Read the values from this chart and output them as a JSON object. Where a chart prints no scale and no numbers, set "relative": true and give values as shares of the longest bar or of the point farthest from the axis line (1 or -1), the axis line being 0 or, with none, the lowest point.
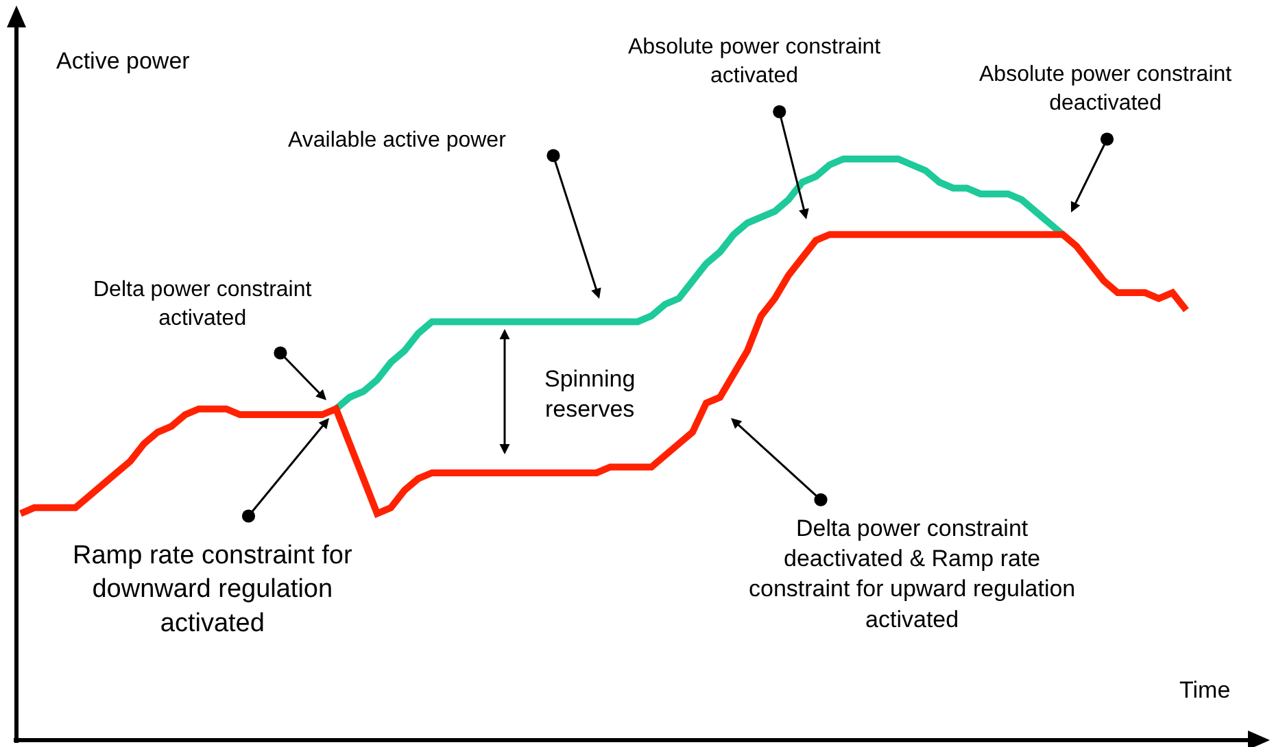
{
  "chart_data": {
    "type": "line",
    "relative": true,
    "xlabel": "Time",
    "ylabel": "Active power",
    "marker": "none",
    "line_style": "solid",
    "categories": [
      null,
      null,
      null,
      null,
      null,
      null,
      null,
      null,
      null,
      null,
      null,
      null,
      null,
      null,
      null,
      null,
      null,
      null,
      null,
      null,
      null,
      null,
      null,
      null,
      null,
      null,
      null,
      null,
      null,
      null,
      null,
      null,
      null,
      null,
      null,
      null,
      null,
      null,
      null,
      null,
      null,
      null,
      null,
      null,
      null,
      null,
      null,
      null,
      null,
      null,
      null,
      null,
      null,
      null,
      null,
      null,
      null,
      null,
      null,
      null,
      null,
      null,
      null,
      null,
      null,
      null,
      null,
      null,
      null,
      null,
      null,
      null,
      null,
      null,
      null,
      null,
      null,
      null,
      null,
      null,
      null,
      null,
      null,
      null,
      null,
      null
    ],
    "series": [
      {
        "color": "#1ec99a",
        "values": [
          null,
          null,
          null,
          null,
          null,
          null,
          null,
          null,
          null,
          null,
          null,
          null,
          null,
          null,
          null,
          null,
          null,
          null,
          null,
          null,
          null,
          null,
          null,
          0.57,
          0.59,
          0.6,
          0.62,
          0.65,
          0.67,
          0.7,
          0.72,
          0.72,
          0.72,
          0.72,
          0.72,
          0.72,
          0.72,
          0.72,
          0.72,
          0.72,
          0.72,
          0.72,
          0.72,
          0.72,
          0.72,
          0.72,
          0.73,
          0.75,
          0.76,
          0.79,
          0.82,
          0.84,
          0.87,
          0.89,
          0.9,
          0.91,
          0.93,
          0.96,
          0.97,
          0.99,
          1,
          1,
          1,
          1,
          1,
          0.99,
          0.98,
          0.96,
          0.95,
          0.95,
          0.94,
          0.94,
          0.94,
          0.93,
          0.91,
          0.89,
          0.87,
          null,
          null,
          null,
          null,
          null,
          null,
          null,
          null,
          null
        ]
      },
      {
        "color": "#ff2200",
        "values": [
          0.39,
          0.4,
          0.4,
          0.4,
          0.4,
          0.42,
          0.44,
          0.46,
          0.48,
          0.51,
          0.53,
          0.54,
          0.56,
          0.57,
          0.57,
          0.57,
          0.56,
          0.56,
          0.56,
          0.56,
          0.56,
          0.56,
          0.56,
          0.57,
          0.51,
          0.45,
          0.39,
          0.4,
          0.43,
          0.45,
          0.46,
          0.46,
          0.46,
          0.46,
          0.46,
          0.46,
          0.46,
          0.46,
          0.46,
          0.46,
          0.46,
          0.46,
          0.46,
          0.47,
          0.47,
          0.47,
          0.47,
          0.49,
          0.51,
          0.53,
          0.58,
          0.59,
          0.63,
          0.67,
          0.73,
          0.76,
          0.8,
          0.83,
          0.86,
          0.87,
          0.87,
          0.87,
          0.87,
          0.87,
          0.87,
          0.87,
          0.87,
          0.87,
          0.87,
          0.87,
          0.87,
          0.87,
          0.87,
          0.87,
          0.87,
          0.87,
          0.87,
          0.85,
          0.82,
          0.79,
          0.77,
          0.77,
          0.77,
          0.76,
          0.77,
          0.74
        ]
      }
    ],
    "annotations": [
      "Available active power",
      "Delta power constraint\nactivated",
      "Absolute power constraint\nactivated",
      "Absolute power constraint\ndeactivated",
      "Spinning\nreserves",
      "Ramp rate constraint for\ndownward regulation\nactivated",
      "Delta power constraint\ndeactivated & Ramp rate\nconstraint for upward regulation\nactivated"
    ]
  }
}
